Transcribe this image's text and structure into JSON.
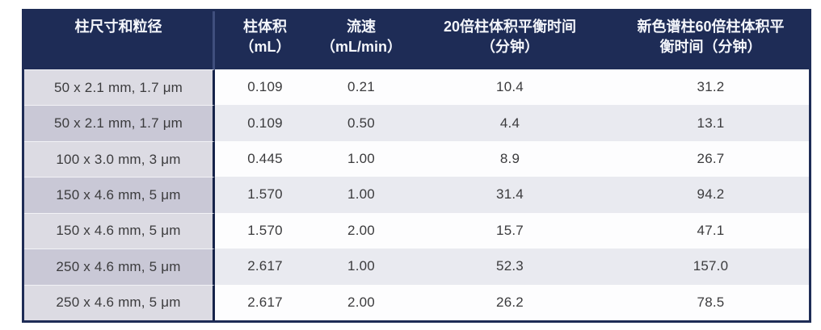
{
  "table": {
    "title_semantic": "column-equilibration-times-table",
    "headers": [
      {
        "label": "柱尺寸和粒径"
      },
      {
        "label": "柱体积\n（mL）"
      },
      {
        "label": "流速\n（mL/min）"
      },
      {
        "label": "20倍柱体积平衡时间\n（分钟）"
      },
      {
        "label": "新色谱柱60倍柱体积平\n衡时间（分钟）"
      }
    ],
    "rows": [
      {
        "size": "50 x 2.1 mm, 1.7 μm",
        "volume": "0.109",
        "flow": "0.21",
        "t20": "10.4",
        "t60": "31.2"
      },
      {
        "size": "50 x 2.1 mm, 1.7 μm",
        "volume": "0.109",
        "flow": "0.50",
        "t20": "4.4",
        "t60": "13.1"
      },
      {
        "size": "100 x 3.0 mm, 3 μm",
        "volume": "0.445",
        "flow": "1.00",
        "t20": "8.9",
        "t60": "26.7"
      },
      {
        "size": "150 x 4.6 mm, 5 μm",
        "volume": "1.570",
        "flow": "1.00",
        "t20": "31.4",
        "t60": "94.2"
      },
      {
        "size": "150 x 4.6 mm, 5 μm",
        "volume": "1.570",
        "flow": "2.00",
        "t20": "15.7",
        "t60": "47.1"
      },
      {
        "size": "250 x 4.6 mm, 5 μm",
        "volume": "2.617",
        "flow": "1.00",
        "t20": "52.3",
        "t60": "157.0"
      },
      {
        "size": "250 x 4.6 mm, 5 μm",
        "volume": "2.617",
        "flow": "2.00",
        "t20": "26.2",
        "t60": "78.5"
      }
    ],
    "colors": {
      "header_bg": "#1e2c56",
      "border": "#1e2c56",
      "first_col_odd": "#dcdbe3",
      "first_col_even": "#c9c8d6",
      "data_row_odd": "#fdfdfe",
      "data_row_even": "#e9eaf0",
      "header_text": "#f4f6fb",
      "body_text": "#3b3b3d"
    }
  }
}
